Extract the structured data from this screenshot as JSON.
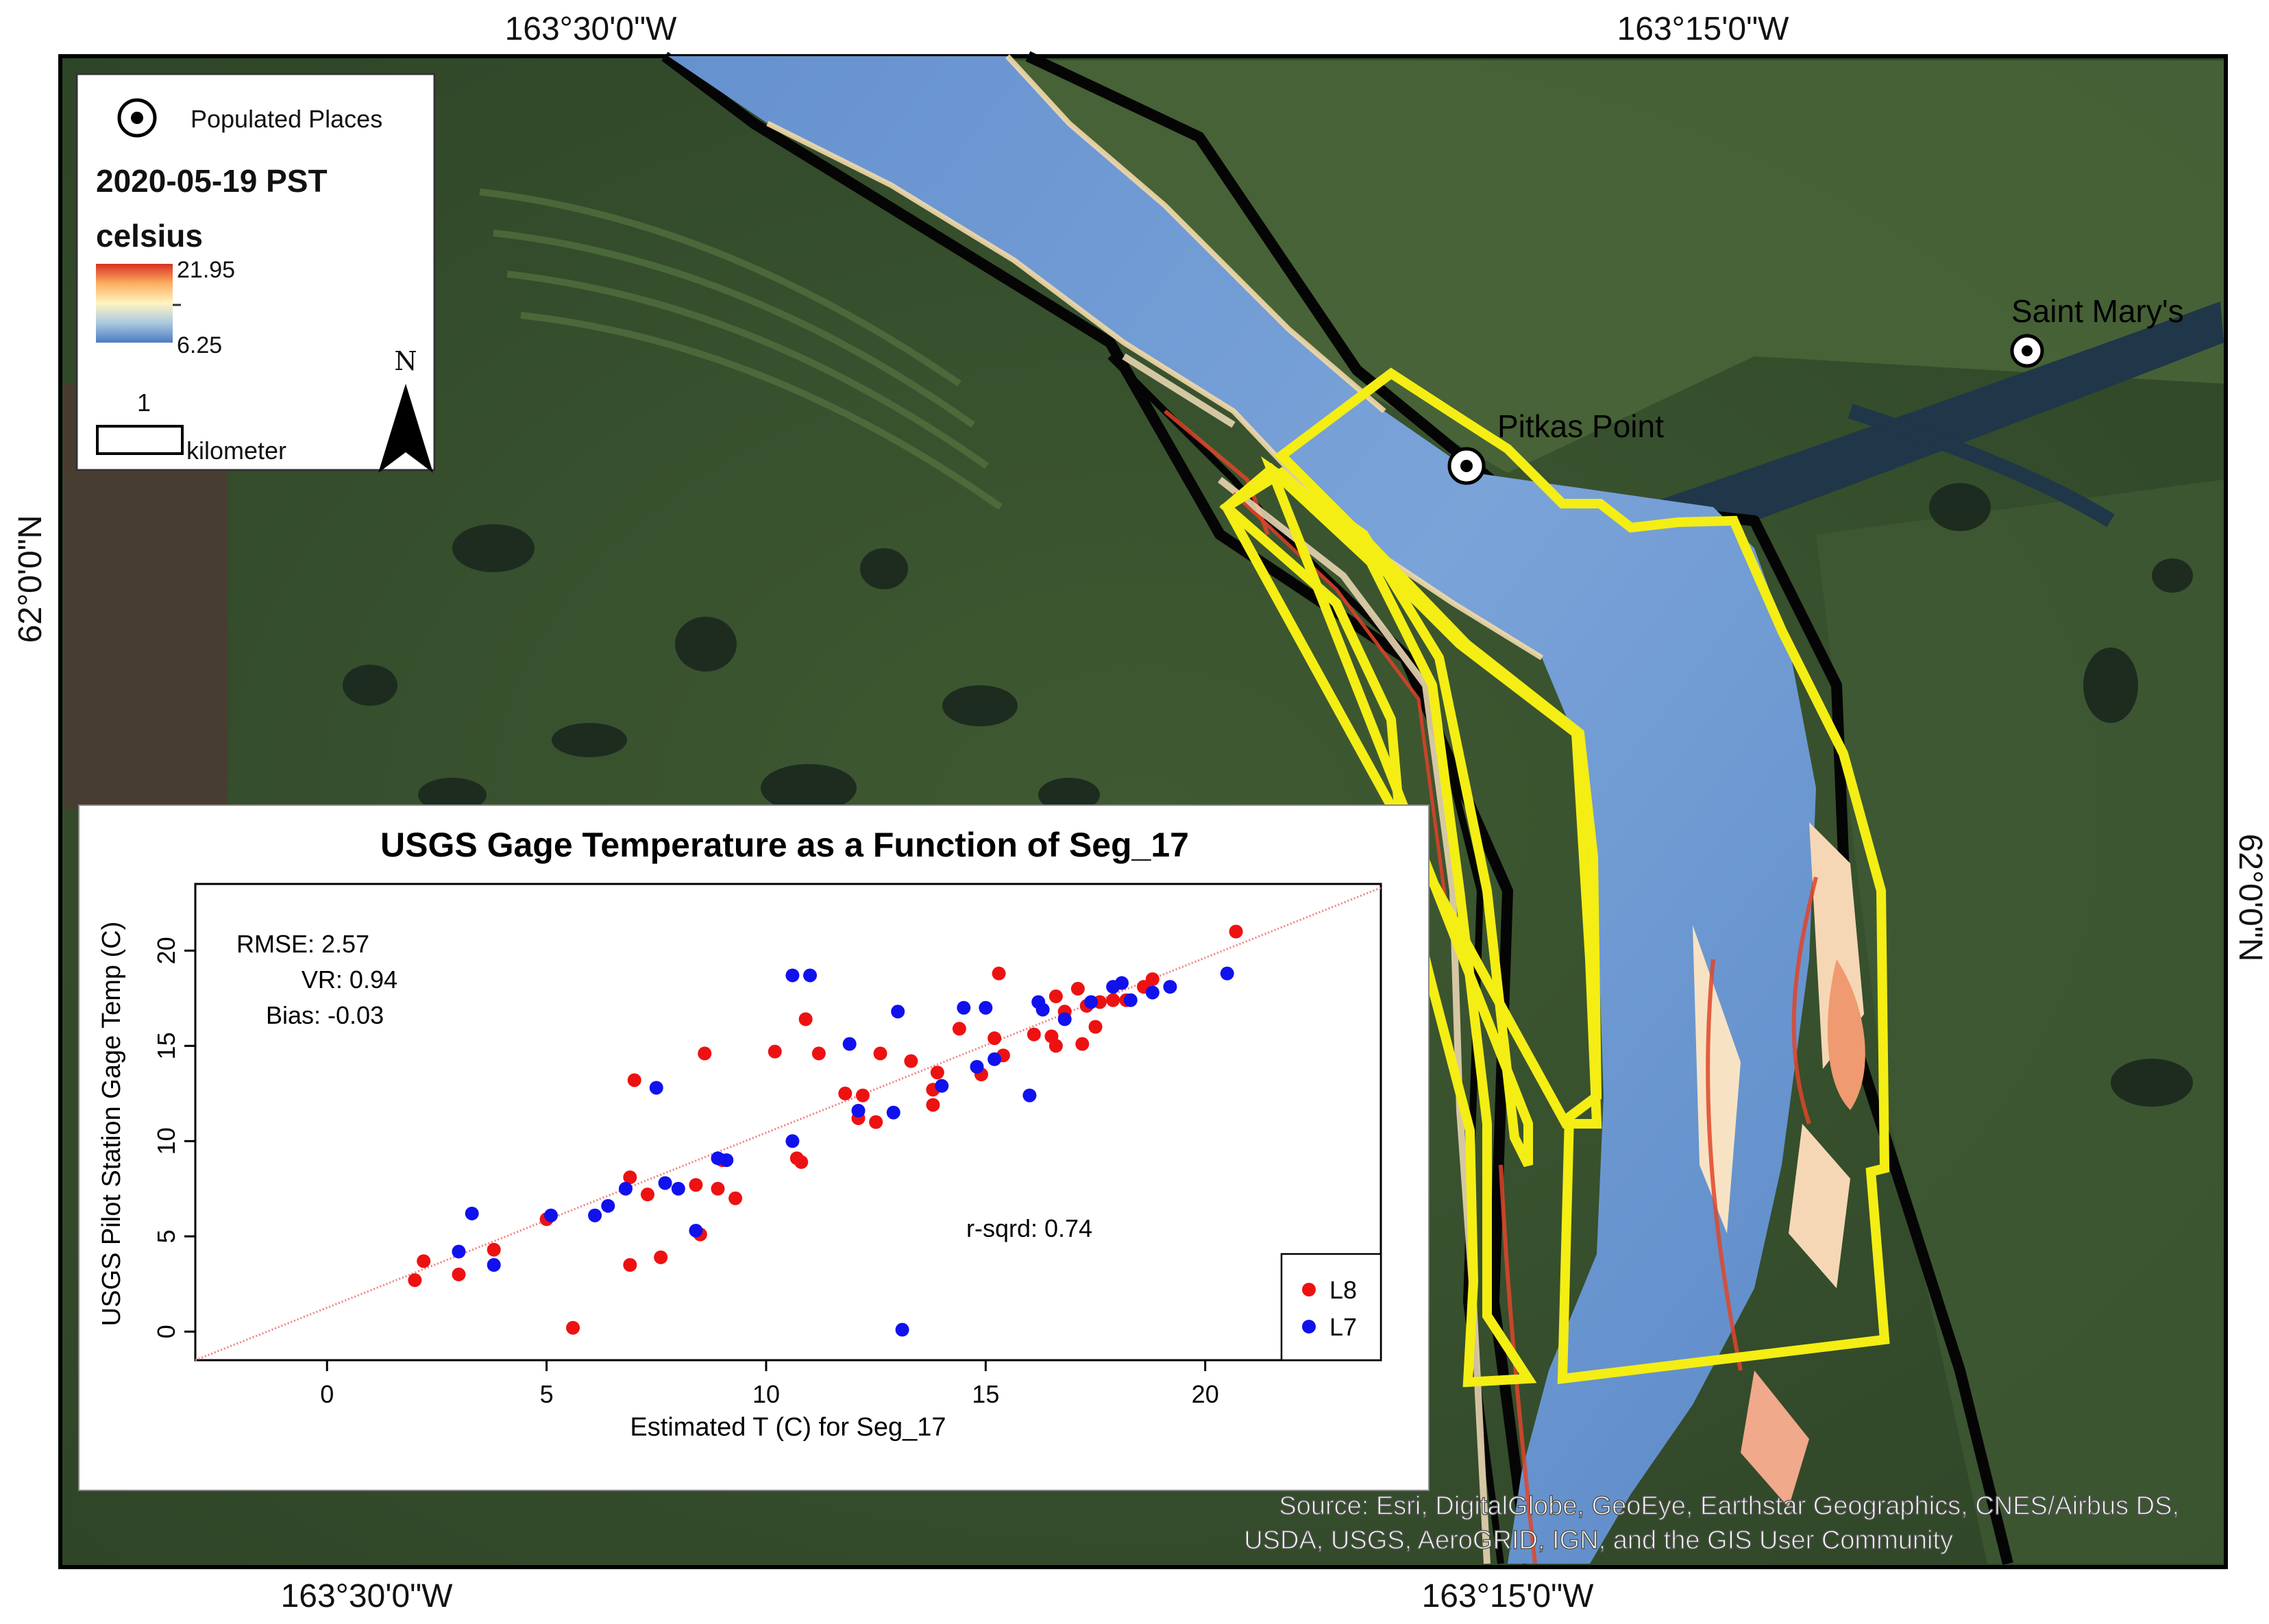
{
  "map": {
    "coords": {
      "top_left": "163°30'0\"W",
      "top_right": "163°15'0\"W",
      "bottom_left": "163°30'0\"W",
      "bottom_right": "163°15'0\"W",
      "left": "62°0'0\"N",
      "right": "62°0'0\"N"
    },
    "places": {
      "saint_marys": "Saint Mary's",
      "pitkas_point": "Pitkas Point"
    },
    "legend": {
      "populated_places": "Populated Places",
      "date": "2020-05-19 PST",
      "unit": "celsius",
      "max": "21.95",
      "min": "6.25",
      "scale_value": "1",
      "scale_unit": "kilometer",
      "north": "N"
    },
    "source_line1": "Source: Esri, DigitalGlobe, GeoEye, Earthstar Geographics, CNES/Airbus DS,",
    "source_line2": "USDA, USGS, AeroGRID, IGN, and the GIS User Community",
    "colors": {
      "water_cold": "#5a88c8",
      "water_warm": "#e0452a",
      "segment_outline": "#f4ee14",
      "buffer_outline": "#000000"
    }
  },
  "chart_data": {
    "type": "scatter",
    "title": "USGS Gage Temperature as a Function of Seg_17",
    "xlabel": "Estimated T (C) for Seg_17",
    "ylabel": "USGS Pilot Station Gage Temp (C)",
    "xlim": [
      -3,
      24
    ],
    "ylim": [
      -1.5,
      23.5
    ],
    "xticks": [
      "0",
      "5",
      "10",
      "15",
      "20"
    ],
    "yticks": [
      "0",
      "5",
      "10",
      "15",
      "20"
    ],
    "stats": {
      "rmse": "RMSE: 2.57",
      "vr": "VR: 0.94",
      "bias": "Bias: -0.03",
      "r2": "r-sqrd: 0.74"
    },
    "fit_line": {
      "x": [
        -3,
        24
      ],
      "y": [
        -1.5,
        23.3
      ]
    },
    "legend_position": "bottom-right",
    "series": [
      {
        "name": "L8",
        "color": "#ee1111",
        "points": [
          [
            2,
            2.7
          ],
          [
            2.2,
            3.7
          ],
          [
            3,
            3
          ],
          [
            3.8,
            4.3
          ],
          [
            5,
            5.9
          ],
          [
            5.6,
            0.2
          ],
          [
            6.9,
            3.5
          ],
          [
            6.9,
            8.1
          ],
          [
            7,
            13.2
          ],
          [
            7.6,
            3.9
          ],
          [
            7.3,
            7.2
          ],
          [
            8.4,
            7.7
          ],
          [
            8.6,
            14.6
          ],
          [
            8.9,
            7.5
          ],
          [
            8.5,
            5.1
          ],
          [
            9,
            9
          ],
          [
            9.3,
            7
          ],
          [
            10.2,
            14.7
          ],
          [
            10.7,
            9.1
          ],
          [
            10.8,
            8.9
          ],
          [
            10.9,
            16.4
          ],
          [
            11.2,
            14.6
          ],
          [
            11.8,
            12.5
          ],
          [
            12.1,
            11.2
          ],
          [
            12.2,
            12.4
          ],
          [
            12.5,
            11
          ],
          [
            12.6,
            14.6
          ],
          [
            13.3,
            14.2
          ],
          [
            13.8,
            12.7
          ],
          [
            13.8,
            11.9
          ],
          [
            13.9,
            13.6
          ],
          [
            14.4,
            15.9
          ],
          [
            14.9,
            13.5
          ],
          [
            15.3,
            18.8
          ],
          [
            15.4,
            14.5
          ],
          [
            15.2,
            15.4
          ],
          [
            16.1,
            15.6
          ],
          [
            16.5,
            15.5
          ],
          [
            16.6,
            17.6
          ],
          [
            16.6,
            15
          ],
          [
            16.8,
            16.8
          ],
          [
            17.2,
            15.1
          ],
          [
            17.3,
            17.1
          ],
          [
            17.1,
            18
          ],
          [
            17.5,
            16
          ],
          [
            17.6,
            17.3
          ],
          [
            17.9,
            17.4
          ],
          [
            18.2,
            17.4
          ],
          [
            18.6,
            18.1
          ],
          [
            18.8,
            18.5
          ],
          [
            20.7,
            21
          ]
        ]
      },
      {
        "name": "L7",
        "color": "#1111ee",
        "points": [
          [
            3,
            4.2
          ],
          [
            3.3,
            6.2
          ],
          [
            3.8,
            3.5
          ],
          [
            5.1,
            6.1
          ],
          [
            6.1,
            6.1
          ],
          [
            6.4,
            6.6
          ],
          [
            6.8,
            7.5
          ],
          [
            7.5,
            12.8
          ],
          [
            7.7,
            7.8
          ],
          [
            8,
            7.5
          ],
          [
            8.4,
            5.3
          ],
          [
            8.9,
            9.1
          ],
          [
            9.1,
            9
          ],
          [
            10.6,
            10
          ],
          [
            10.6,
            18.7
          ],
          [
            11,
            18.7
          ],
          [
            11.9,
            15.1
          ],
          [
            12.1,
            11.6
          ],
          [
            12.9,
            11.5
          ],
          [
            13,
            16.8
          ],
          [
            13.1,
            0.1
          ],
          [
            14,
            12.9
          ],
          [
            14.5,
            17
          ],
          [
            14.8,
            13.9
          ],
          [
            15,
            17
          ],
          [
            15.2,
            14.3
          ],
          [
            16,
            12.4
          ],
          [
            16.2,
            17.3
          ],
          [
            16.3,
            16.9
          ],
          [
            16.8,
            16.4
          ],
          [
            17.4,
            17.3
          ],
          [
            17.9,
            18.1
          ],
          [
            18.1,
            18.3
          ],
          [
            18.3,
            17.4
          ],
          [
            18.8,
            17.8
          ],
          [
            19.2,
            18.1
          ],
          [
            20.5,
            18.8
          ]
        ]
      }
    ]
  }
}
